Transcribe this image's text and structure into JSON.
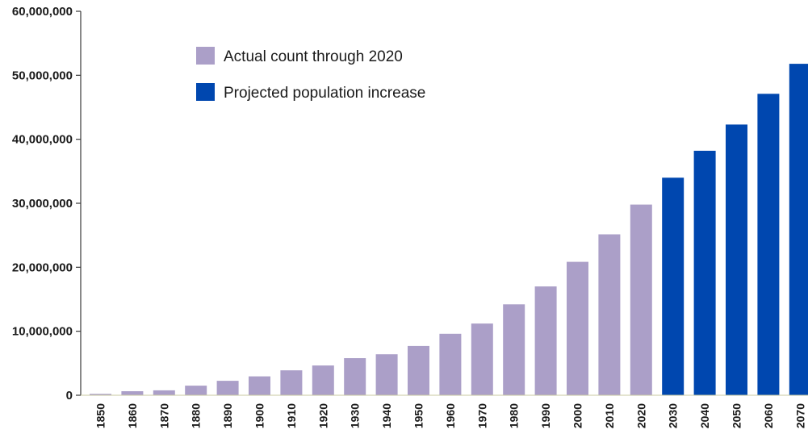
{
  "chart_data": {
    "type": "bar",
    "title": "",
    "xlabel": "",
    "ylabel": "",
    "ylim": [
      0,
      60000000
    ],
    "yticks": [
      {
        "value": 0,
        "label": "0"
      },
      {
        "value": 10000000,
        "label": "10,000,000"
      },
      {
        "value": 20000000,
        "label": "20,000,000"
      },
      {
        "value": 30000000,
        "label": "30,000,000"
      },
      {
        "value": 40000000,
        "label": "40,000,000"
      },
      {
        "value": 50000000,
        "label": "50,000,000"
      },
      {
        "value": 60000000,
        "label": "60,000,000"
      }
    ],
    "grid": false,
    "legend_position": "top-left",
    "categories": [
      "1850",
      "1860",
      "1870",
      "1880",
      "1890",
      "1900",
      "1910",
      "1920",
      "1930",
      "1940",
      "1950",
      "1960",
      "1970",
      "1980",
      "1990",
      "2000",
      "2010",
      "2020",
      "2030",
      "2040",
      "2050",
      "2060",
      "2070"
    ],
    "series": [
      {
        "name": "Actual count through 2020",
        "color": "#ab9fc8",
        "values": [
          210000,
          630000,
          770000,
          1500000,
          2250000,
          2950000,
          3900000,
          4650000,
          5800000,
          6400000,
          7700000,
          9600000,
          11200000,
          14200000,
          17000000,
          20850000,
          25150000,
          29800000,
          null,
          null,
          null,
          null,
          null
        ]
      },
      {
        "name": "Projected population increase",
        "color": "#0047af",
        "values": [
          null,
          null,
          null,
          null,
          null,
          null,
          null,
          null,
          null,
          null,
          null,
          null,
          null,
          null,
          null,
          null,
          null,
          null,
          34000000,
          38200000,
          42300000,
          47100000,
          51800000
        ]
      }
    ]
  }
}
